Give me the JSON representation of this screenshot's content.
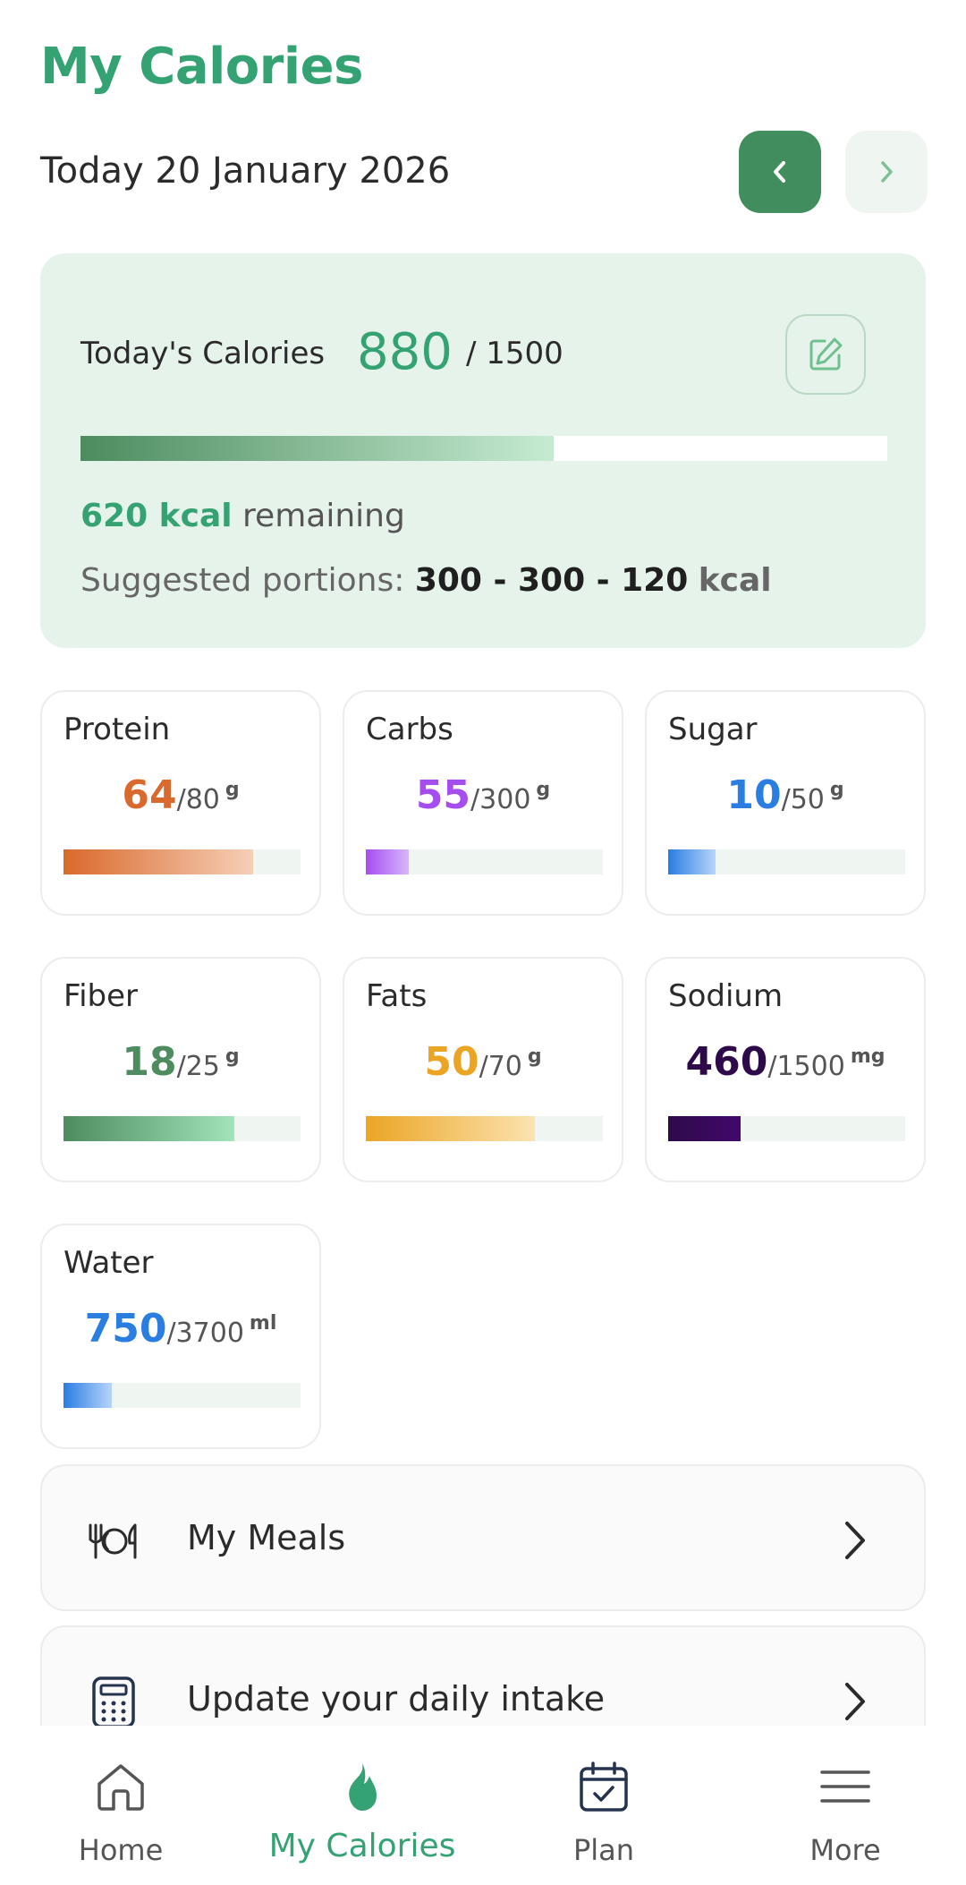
{
  "header": {
    "title": "My Calories"
  },
  "date": {
    "text": "Today 20 January 2026",
    "prev_icon": "chevron-left-icon",
    "next_icon": "chevron-right-icon"
  },
  "calories": {
    "label": "Today's Calories",
    "current": "880",
    "goal": "/ 1500",
    "progress": 0.587,
    "remaining_value": "620 kcal",
    "remaining_label": "remaining",
    "portions_label": "Suggested portions:",
    "portions_values": "300 - 300 - 120",
    "portions_unit": "kcal",
    "edit_icon": "pencil-icon"
  },
  "nutrients": [
    {
      "name": "Protein",
      "current": "64",
      "goal": "/80",
      "unit": "g",
      "progress": 0.8,
      "color": "#d9692c",
      "gradient_to": "#f6cfb7"
    },
    {
      "name": "Carbs",
      "current": "55",
      "goal": "/300",
      "unit": "g",
      "progress": 0.183,
      "color": "#a64df0",
      "gradient_to": "#d7b7fa"
    },
    {
      "name": "Sugar",
      "current": "10",
      "goal": "/50",
      "unit": "g",
      "progress": 0.2,
      "color": "#2a7de1",
      "gradient_to": "#b7d5fb"
    },
    {
      "name": "Fiber",
      "current": "18",
      "goal": "/25",
      "unit": "g",
      "progress": 0.72,
      "color": "#4c8c5e",
      "gradient_to": "#a3e3bb"
    },
    {
      "name": "Fats",
      "current": "50",
      "goal": "/70",
      "unit": "g",
      "progress": 0.714,
      "color": "#eba525",
      "gradient_to": "#fbe3b1"
    },
    {
      "name": "Sodium",
      "current": "460",
      "goal": "/1500",
      "unit": "mg",
      "progress": 0.307,
      "color": "#2e0a4a",
      "gradient_to": "#42086b"
    },
    {
      "name": "Water",
      "current": "750",
      "goal": "/3700",
      "unit": "ml",
      "progress": 0.203,
      "color": "#2a7de1",
      "gradient_to": "#b7d5fb"
    }
  ],
  "menu": [
    {
      "label": "My Meals",
      "icon": "plate-cutlery-icon"
    },
    {
      "label": "Update your daily intake",
      "icon": "calculator-icon"
    }
  ],
  "bottom_nav": [
    {
      "label": "Home",
      "icon": "home-icon",
      "active": false
    },
    {
      "label": "My Calories",
      "icon": "flame-icon",
      "active": true
    },
    {
      "label": "Plan",
      "icon": "calendar-check-icon",
      "active": false
    },
    {
      "label": "More",
      "icon": "menu-icon",
      "active": false
    }
  ],
  "colors": {
    "accent": "#35a273",
    "accent_dark": "#428d5d",
    "card_bg": "#e6f3ea"
  }
}
